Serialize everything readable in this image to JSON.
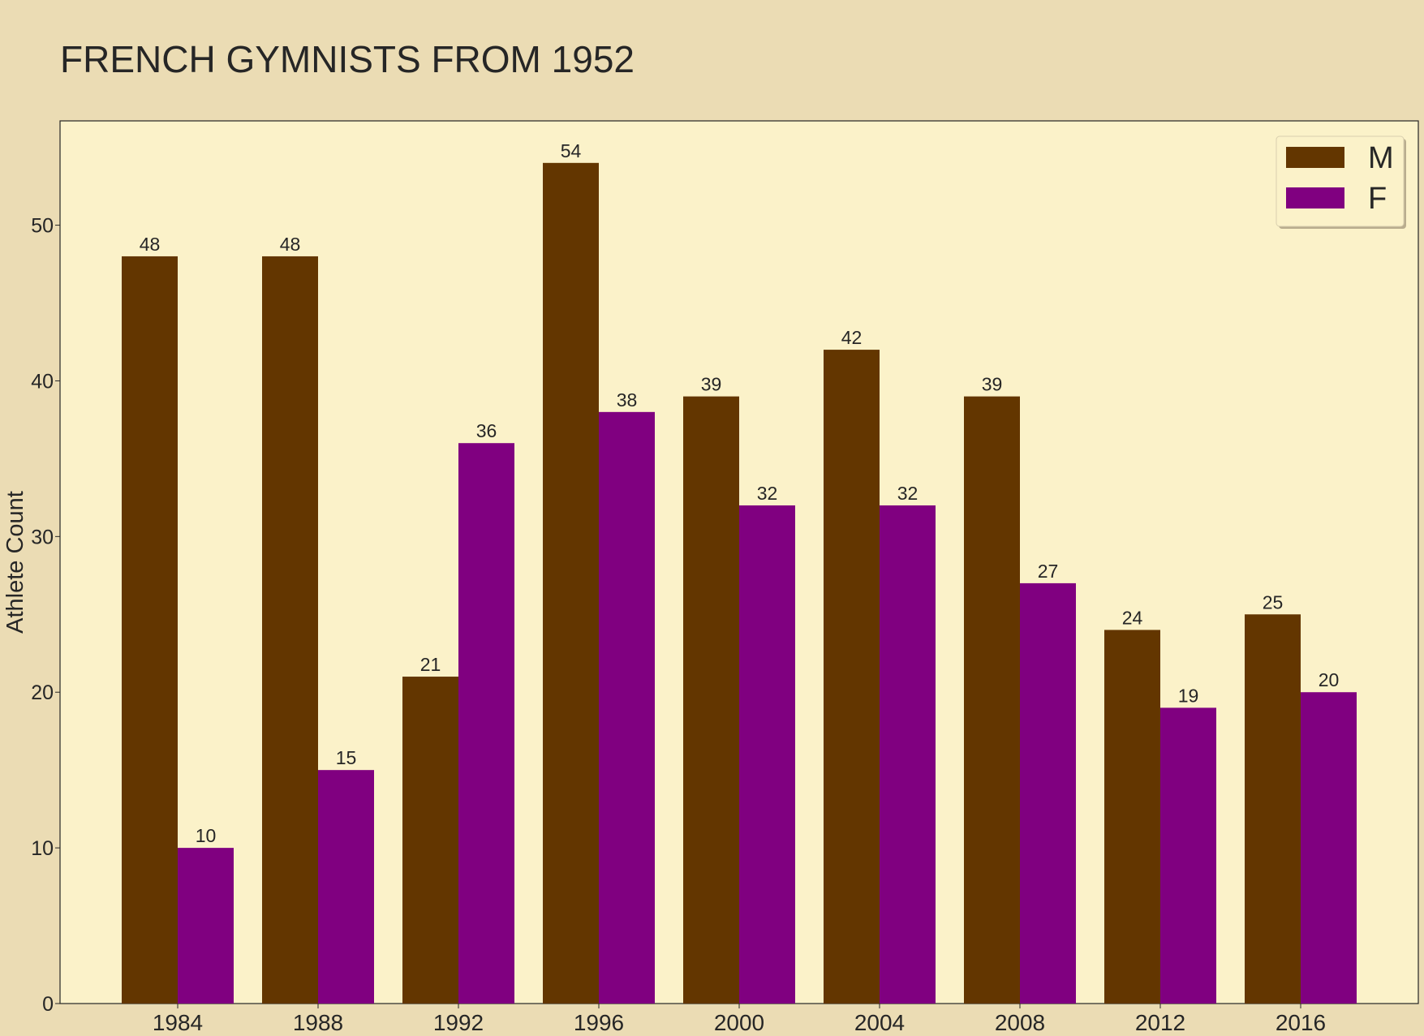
{
  "chart_data": {
    "type": "bar",
    "title": "FRENCH GYMNISTS FROM 1952",
    "xlabel": "",
    "ylabel": "Athlete Count",
    "categories": [
      "1984",
      "1988",
      "1992",
      "1996",
      "2000",
      "2004",
      "2008",
      "2012",
      "2016"
    ],
    "series": [
      {
        "name": "M",
        "color": "#633600",
        "values": [
          48,
          48,
          21,
          54,
          39,
          42,
          39,
          24,
          25
        ]
      },
      {
        "name": "F",
        "color": "#800080",
        "values": [
          10,
          15,
          36,
          38,
          32,
          32,
          27,
          19,
          20
        ]
      }
    ],
    "ylim": [
      0,
      56.7
    ],
    "yticks": [
      0,
      10,
      20,
      30,
      40,
      50
    ],
    "grid": false,
    "legend_position": "top-right",
    "colors": {
      "figure_background": "#ebdcb4",
      "plot_background": "#fbf2c9",
      "text": "#262626"
    }
  }
}
